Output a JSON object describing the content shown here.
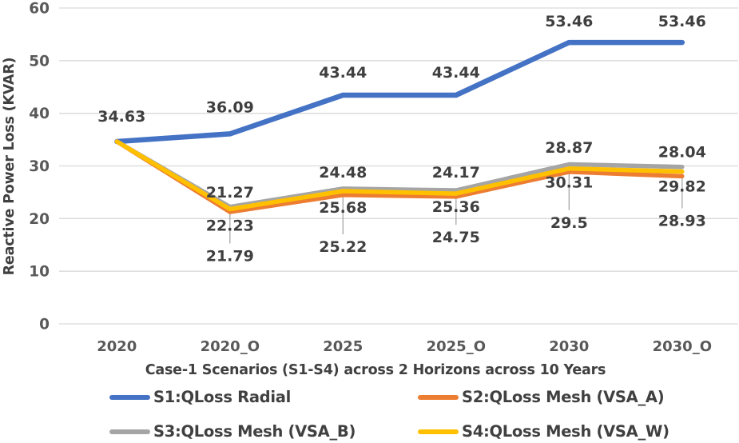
{
  "chart_data": {
    "type": "line",
    "title": "",
    "xlabel": "Case-1 Scenarios (S1-S4) across 2 Horizons across 10 Years",
    "ylabel": "Reactive Power Loss (KVAR)",
    "ylim": [
      0,
      60
    ],
    "yticks": [
      0,
      10,
      20,
      30,
      40,
      50,
      60
    ],
    "grid": "horizontal",
    "legend_position": "bottom, 2 columns x 2 rows",
    "categories": [
      "2020",
      "2020_O",
      "2025",
      "2025_O",
      "2030",
      "2030_O"
    ],
    "series": [
      {
        "name": "S1:QLoss Radial",
        "color": "#4472C4",
        "stroke_width": 6.5,
        "values": [
          34.63,
          36.09,
          43.44,
          43.44,
          53.46,
          53.46
        ],
        "labels": [
          "34.63",
          "36.09",
          "43.44",
          "43.44",
          "53.46",
          "53.46"
        ],
        "label_dx": [
          6,
          0,
          0,
          0,
          0,
          0
        ],
        "label_dy": [
          -25,
          -27,
          -22,
          -22,
          -20,
          -20
        ],
        "leader": [
          false,
          false,
          false,
          false,
          false,
          false
        ]
      },
      {
        "name": "S2:QLoss Mesh (VSA_A)",
        "color": "#ED7D31",
        "stroke_width": 5.5,
        "values": [
          34.63,
          21.27,
          24.48,
          24.17,
          28.87,
          28.04
        ],
        "labels": [
          null,
          "21.27",
          "24.48",
          "24.17",
          "28.87",
          "28.04"
        ],
        "label_dx": [
          0,
          0,
          0,
          0,
          0,
          0
        ],
        "label_dy": [
          0,
          -18,
          -22,
          -24,
          -24,
          -24
        ],
        "leader": [
          false,
          false,
          false,
          false,
          false,
          false
        ]
      },
      {
        "name": "S3:QLoss Mesh (VSA_B)",
        "color": "#A5A5A5",
        "stroke_width": 5.5,
        "values": [
          34.63,
          22.23,
          25.68,
          25.36,
          30.31,
          29.82
        ],
        "labels": [
          null,
          "22.23",
          "25.68",
          "25.36",
          "30.31",
          "29.82"
        ],
        "label_dx": [
          0,
          0,
          0,
          0,
          0,
          0
        ],
        "label_dy": [
          0,
          30,
          30,
          27,
          29,
          31
        ],
        "leader": [
          false,
          false,
          false,
          false,
          false,
          false
        ]
      },
      {
        "name": "S4:QLoss Mesh (VSA_W)",
        "color": "#FFC000",
        "stroke_width": 5.5,
        "values": [
          34.63,
          21.79,
          25.22,
          24.75,
          29.5,
          28.93
        ],
        "labels": [
          null,
          "21.79",
          "25.22",
          "24.75",
          "29.5",
          "28.93"
        ],
        "label_dx": [
          0,
          0,
          0,
          0,
          0,
          0
        ],
        "label_dy": [
          0,
          65,
          76,
          61,
          74,
          68
        ],
        "leader": [
          false,
          true,
          true,
          true,
          true,
          true
        ]
      }
    ]
  },
  "styles": {
    "background": "#FFFFFF",
    "grid_color": "#D9D9D9",
    "tick_color": "#595959",
    "data_label_color": "#3F3F3F",
    "axis_title_color": "#404040",
    "leader_color": "#A6A6A6"
  }
}
